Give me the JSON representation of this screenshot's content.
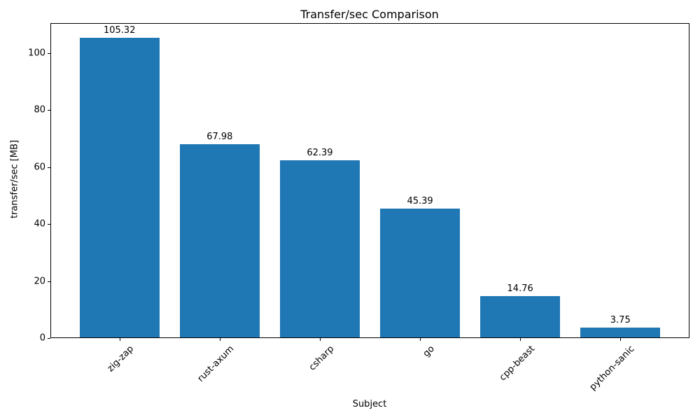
{
  "chart_data": {
    "type": "bar",
    "title": "Transfer/sec Comparison",
    "xlabel": "Subject",
    "ylabel": "transfer/sec [MB]",
    "categories": [
      "zig-zap",
      "rust-axum",
      "csharp",
      "go",
      "cpp-beast",
      "python-sanic"
    ],
    "values": [
      105.32,
      67.98,
      62.39,
      45.39,
      14.76,
      3.75
    ],
    "value_labels": [
      "105.32",
      "67.98",
      "62.39",
      "45.39",
      "14.76",
      "3.75"
    ],
    "yticks": [
      0,
      20,
      40,
      60,
      80,
      100
    ],
    "ylim": [
      0,
      110.59
    ],
    "bar_width_fraction": 0.8,
    "x_tick_rotation_deg": 45,
    "grid": false,
    "legend": null,
    "colors": {
      "bar": "#1f77b4",
      "text": "#000000",
      "spine": "#000000",
      "background": "#ffffff"
    }
  }
}
